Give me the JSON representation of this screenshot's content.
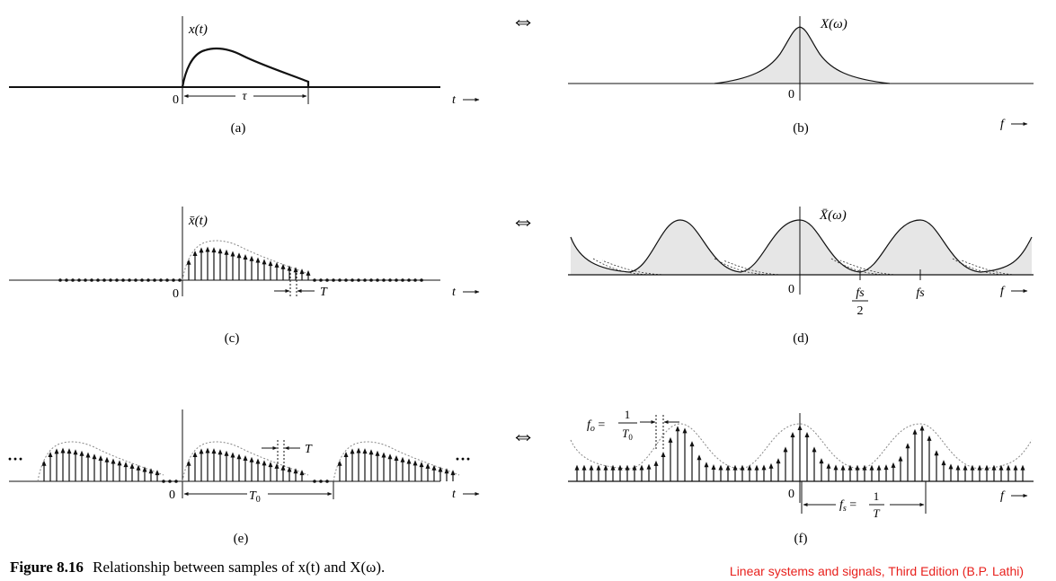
{
  "figure": {
    "caption_label": "Figure 8.16",
    "caption_text": "Relationship between samples of x(t) and X(ω).",
    "credit": "Linear systems and signals, Third Edition (B.P. Lathi)"
  },
  "panels": {
    "a": {
      "label": "(a)",
      "ylabel": "x(t)",
      "origin": "0",
      "tau": "τ",
      "taxis": "t"
    },
    "b": {
      "label": "(b)",
      "ylabel": "X(ω)",
      "origin": "0",
      "faxis": "f"
    },
    "c": {
      "label": "(c)",
      "ylabel": "x̄(t)",
      "origin": "0",
      "period": "T",
      "taxis": "t"
    },
    "d": {
      "label": "(d)",
      "ylabel": "X̄(ω)",
      "origin": "0",
      "half_num": "fs",
      "half_den": "2",
      "fs": "fs",
      "faxis": "f"
    },
    "e": {
      "label": "(e)",
      "origin": "0",
      "period_T0": "T0",
      "period": "T",
      "taxis": "t",
      "ellipsis_left": "···",
      "ellipsis_right": "···"
    },
    "f": {
      "label": "(f)",
      "origin": "0",
      "fo_lhs": "fo",
      "fo_num": "1",
      "fo_den": "T0",
      "fs_lhs": "fs",
      "fs_num": "1",
      "fs_den": "T",
      "faxis": "f"
    }
  },
  "transform_pair_symbol": "⇔"
}
